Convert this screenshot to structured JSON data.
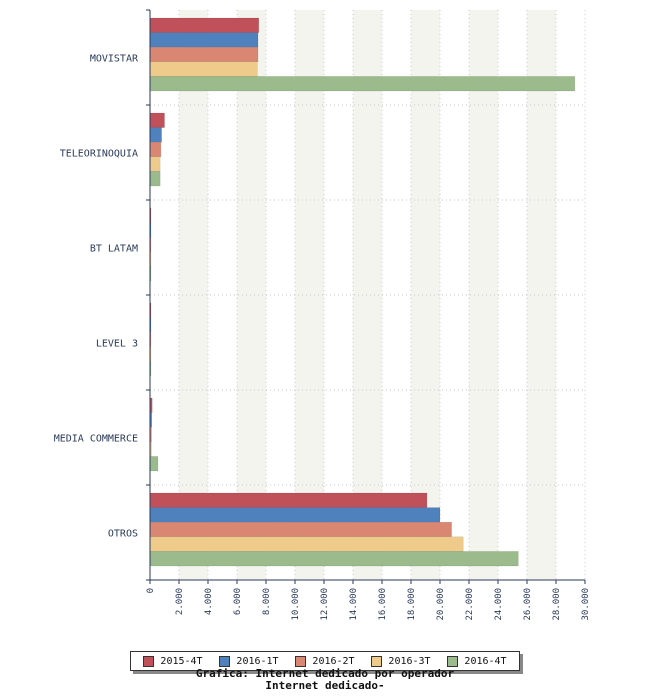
{
  "chart_data": {
    "type": "bar",
    "orientation": "horizontal",
    "title": "Grafica: Internet dedicado por operador",
    "subtitle": "Internet dedicado-",
    "categories": [
      "MOVISTAR",
      "TELEORINOQUIA",
      "BT LATAM",
      "LEVEL 3",
      "MEDIA COMMERCE",
      "OTROS"
    ],
    "series": [
      {
        "name": "2015-4T",
        "color": "#c0505a",
        "values": [
          7500,
          1000,
          30,
          20,
          150,
          19100
        ]
      },
      {
        "name": "2016-1T",
        "color": "#4f81bd",
        "values": [
          7450,
          800,
          30,
          20,
          120,
          20000
        ]
      },
      {
        "name": "2016-2T",
        "color": "#d98672",
        "values": [
          7450,
          750,
          30,
          20,
          100,
          20800
        ]
      },
      {
        "name": "2016-3T",
        "color": "#eecb8a",
        "values": [
          7400,
          700,
          30,
          20,
          100,
          21600
        ]
      },
      {
        "name": "2016-4T",
        "color": "#9bbb8c",
        "values": [
          29300,
          700,
          30,
          20,
          550,
          25400
        ]
      }
    ],
    "xlim": [
      0,
      30000
    ],
    "xticks": [
      0,
      2000,
      4000,
      6000,
      8000,
      10000,
      12000,
      14000,
      16000,
      18000,
      20000,
      22000,
      24000,
      26000,
      28000,
      30000
    ],
    "xtick_labels": [
      "0",
      "2.000",
      "4.000",
      "6.000",
      "8.000",
      "10.000",
      "12.000",
      "14.000",
      "16.000",
      "18.000",
      "20.000",
      "22.000",
      "24.000",
      "26.000",
      "28.000",
      "30.000"
    ],
    "grid": true,
    "legend_position": "bottom"
  }
}
